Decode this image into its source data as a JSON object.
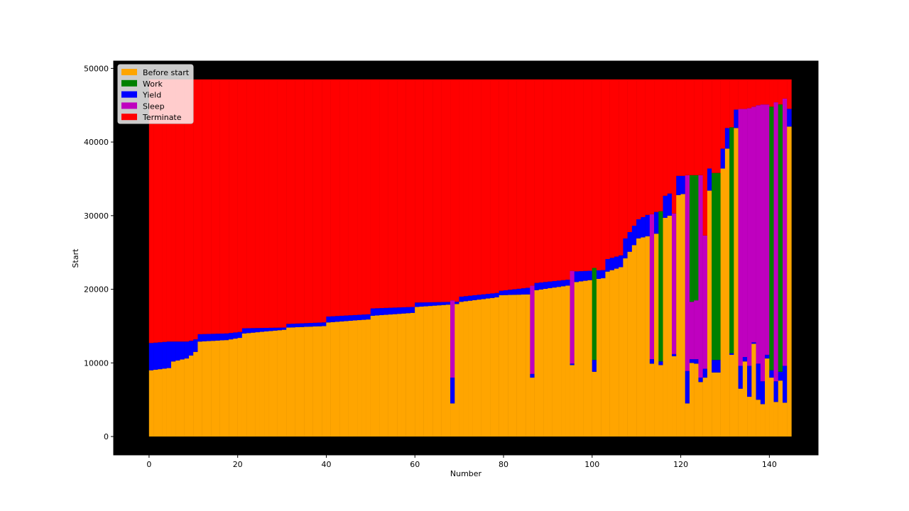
{
  "chart_data": {
    "type": "bar",
    "title": "",
    "xlabel": "Number",
    "ylabel": "Start",
    "xlim": [
      -8,
      151
    ],
    "ylim": [
      -2500,
      51000
    ],
    "xticks": [
      0,
      20,
      40,
      60,
      80,
      100,
      120,
      140
    ],
    "yticks": [
      0,
      10000,
      20000,
      30000,
      40000,
      50000
    ],
    "background": "#000000",
    "grid": false,
    "legend_position": "upper-left",
    "n_tasks": 145,
    "end_time": 48500,
    "legend": [
      {
        "name": "Before start",
        "color": "#ffa500"
      },
      {
        "name": "Work",
        "color": "#008000"
      },
      {
        "name": "Yield",
        "color": "#0000ff"
      },
      {
        "name": "Sleep",
        "color": "#bf00bf"
      },
      {
        "name": "Terminate",
        "color": "#ff0000"
      }
    ],
    "trend_points": [
      [
        0,
        9000,
        12700
      ],
      [
        4,
        9300,
        12900
      ],
      [
        5,
        10200,
        12900
      ],
      [
        8,
        10600,
        12900
      ],
      [
        9,
        11000,
        13000
      ],
      [
        10,
        11500,
        13200
      ],
      [
        11,
        12900,
        13900
      ],
      [
        17,
        13100,
        14000
      ],
      [
        20,
        13400,
        14200
      ],
      [
        21,
        14000,
        14700
      ],
      [
        30,
        14500,
        14800
      ],
      [
        31,
        14800,
        15300
      ],
      [
        39,
        15000,
        15500
      ],
      [
        40,
        15500,
        16300
      ],
      [
        49,
        15900,
        16600
      ],
      [
        50,
        16400,
        17400
      ],
      [
        59,
        16800,
        17600
      ],
      [
        60,
        17600,
        18200
      ],
      [
        69,
        18000,
        18300
      ],
      [
        70,
        18300,
        19000
      ],
      [
        78,
        18900,
        19500
      ],
      [
        79,
        19200,
        19800
      ],
      [
        85,
        19300,
        20200
      ],
      [
        86,
        19800,
        20800
      ],
      [
        94,
        20500,
        21300
      ],
      [
        95,
        20900,
        22400
      ],
      [
        102,
        21500,
        22600
      ],
      [
        103,
        22400,
        24100
      ],
      [
        106,
        23000,
        24600
      ],
      [
        107,
        24200,
        26900
      ],
      [
        110,
        26900,
        29500
      ],
      [
        112,
        27200,
        30100
      ],
      [
        113,
        27500,
        30300
      ],
      [
        115,
        27600,
        30700
      ],
      [
        116,
        29700,
        32700
      ],
      [
        118,
        30300,
        33300
      ],
      [
        119,
        32800,
        35400
      ],
      [
        122,
        33200,
        35400
      ],
      [
        126,
        33400,
        36400
      ],
      [
        129,
        36400,
        39100
      ],
      [
        130,
        39100,
        41900
      ],
      [
        131,
        41600,
        42400
      ],
      [
        132,
        41900,
        44400
      ],
      [
        133,
        42100,
        44500
      ],
      [
        144,
        42100,
        44500
      ]
    ],
    "sleep_tasks": [
      68,
      86,
      95,
      113,
      116,
      118,
      121,
      122,
      123,
      124,
      125,
      127,
      128,
      131,
      133,
      134,
      135,
      136,
      137,
      138,
      139,
      140,
      141,
      142,
      143
    ],
    "anomalies": [
      {
        "task": 68,
        "before": 4500,
        "yield_end": 8000,
        "sleep_end": 18500,
        "work_end": 18500
      },
      {
        "task": 86,
        "before": 8000,
        "yield_end": 8500,
        "sleep_end": 20500,
        "work_end": 20500
      },
      {
        "task": 95,
        "before": 9700,
        "yield_end": 9900,
        "sleep_end": 22500,
        "work_end": 22500
      },
      {
        "task": 100,
        "before": 8800,
        "yield_end": 10400,
        "sleep_end": 10400,
        "work_end": 22900
      },
      {
        "task": 113,
        "before": 9900,
        "yield_end": 10500,
        "sleep_end": 30200,
        "work_end": 30200
      },
      {
        "task": 115,
        "before": 9700,
        "yield_end": 10200,
        "sleep_end": 10200,
        "work_end": 30600
      },
      {
        "task": 118,
        "before": 10900,
        "yield_end": 11200,
        "sleep_end": 30300,
        "work_end": 30300
      },
      {
        "task": 121,
        "before": 4500,
        "yield_end": 8900,
        "sleep_end": 35500,
        "work_end": 35500
      },
      {
        "task": 122,
        "before": 10000,
        "yield_end": 10500,
        "sleep_end": 18300,
        "work_end": 35500
      },
      {
        "task": 123,
        "before": 9900,
        "yield_end": 10500,
        "sleep_end": 18500,
        "work_end": 35500
      },
      {
        "task": 124,
        "before": 7400,
        "yield_end": 8000,
        "sleep_end": 35500,
        "work_end": 35500
      },
      {
        "task": 125,
        "before": 8000,
        "yield_end": 9200,
        "sleep_end": 27300,
        "work_end": 27300
      },
      {
        "task": 127,
        "before": 8700,
        "yield_end": 10400,
        "sleep_end": 10400,
        "work_end": 35800
      },
      {
        "task": 128,
        "before": 8700,
        "yield_end": 10400,
        "sleep_end": 10400,
        "work_end": 35800
      },
      {
        "task": 131,
        "before": 11100,
        "yield_end": 11300,
        "sleep_end": 11300,
        "work_end": 42000
      },
      {
        "task": 133,
        "before": 6500,
        "yield_end": 9600,
        "sleep_end": 44500,
        "work_end": 44500
      },
      {
        "task": 134,
        "before": 10200,
        "yield_end": 10800,
        "sleep_end": 44500,
        "work_end": 44500
      },
      {
        "task": 135,
        "before": 5400,
        "yield_end": 9600,
        "sleep_end": 44600,
        "work_end": 44600
      },
      {
        "task": 136,
        "before": 12600,
        "yield_end": 12800,
        "sleep_end": 44800,
        "work_end": 44800
      },
      {
        "task": 137,
        "before": 5000,
        "yield_end": 9900,
        "sleep_end": 45000,
        "work_end": 45000
      },
      {
        "task": 138,
        "before": 4400,
        "yield_end": 7500,
        "sleep_end": 45100,
        "work_end": 45100
      },
      {
        "task": 139,
        "before": 10600,
        "yield_end": 11100,
        "sleep_end": 45100,
        "work_end": 45100
      },
      {
        "task": 140,
        "before": 8000,
        "yield_end": 9000,
        "sleep_end": 9000,
        "work_end": 44800
      },
      {
        "task": 141,
        "before": 4700,
        "yield_end": 7500,
        "sleep_end": 45400,
        "work_end": 45400
      },
      {
        "task": 142,
        "before": 7600,
        "yield_end": 8800,
        "sleep_end": 8800,
        "work_end": 45100
      },
      {
        "task": 143,
        "before": 4600,
        "yield_end": 9600,
        "sleep_end": 45900,
        "work_end": 45900
      }
    ]
  }
}
